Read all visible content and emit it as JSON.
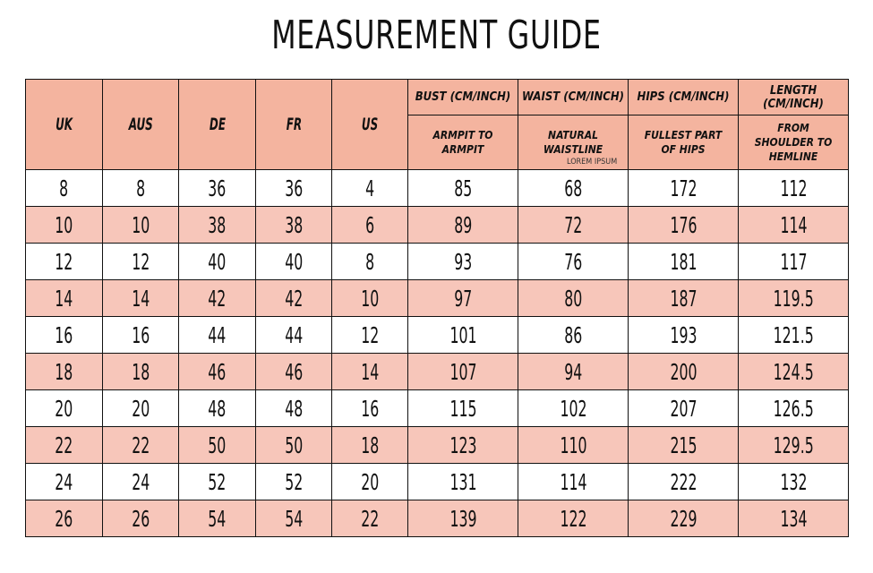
{
  "title": "MEASUREMENT GUIDE",
  "table": {
    "size_headers": [
      "UK",
      "AUS",
      "DE",
      "FR",
      "US"
    ],
    "measure_headers": [
      {
        "name": "BUST (CM/INCH)",
        "detail": "ARMPIT TO ARMPIT"
      },
      {
        "name": "WAIST (CM/INCH)",
        "detail": "NATURAL WAISTLINE"
      },
      {
        "name": "HIPS (CM/INCH)",
        "detail": "FULLEST PART OF HIPS"
      },
      {
        "name": "LENGTH (CM/INCH)",
        "detail": "FROM SHOULDER TO HEMLINE"
      }
    ],
    "note": "LOREM IPSUM",
    "rows": [
      [
        8,
        8,
        36,
        36,
        4,
        85,
        68,
        172,
        112
      ],
      [
        10,
        10,
        38,
        38,
        6,
        89,
        72,
        176,
        114
      ],
      [
        12,
        12,
        40,
        40,
        8,
        93,
        76,
        181,
        117
      ],
      [
        14,
        14,
        42,
        42,
        10,
        97,
        80,
        187,
        119.5
      ],
      [
        16,
        16,
        44,
        44,
        12,
        101,
        86,
        193,
        121.5
      ],
      [
        18,
        18,
        46,
        46,
        14,
        107,
        94,
        200,
        124.5
      ],
      [
        20,
        20,
        48,
        48,
        16,
        115,
        102,
        207,
        126.5
      ],
      [
        22,
        22,
        50,
        50,
        18,
        123,
        110,
        215,
        129.5
      ],
      [
        24,
        24,
        52,
        52,
        20,
        131,
        114,
        222,
        132
      ],
      [
        26,
        26,
        54,
        54,
        22,
        139,
        122,
        229,
        134
      ]
    ]
  }
}
